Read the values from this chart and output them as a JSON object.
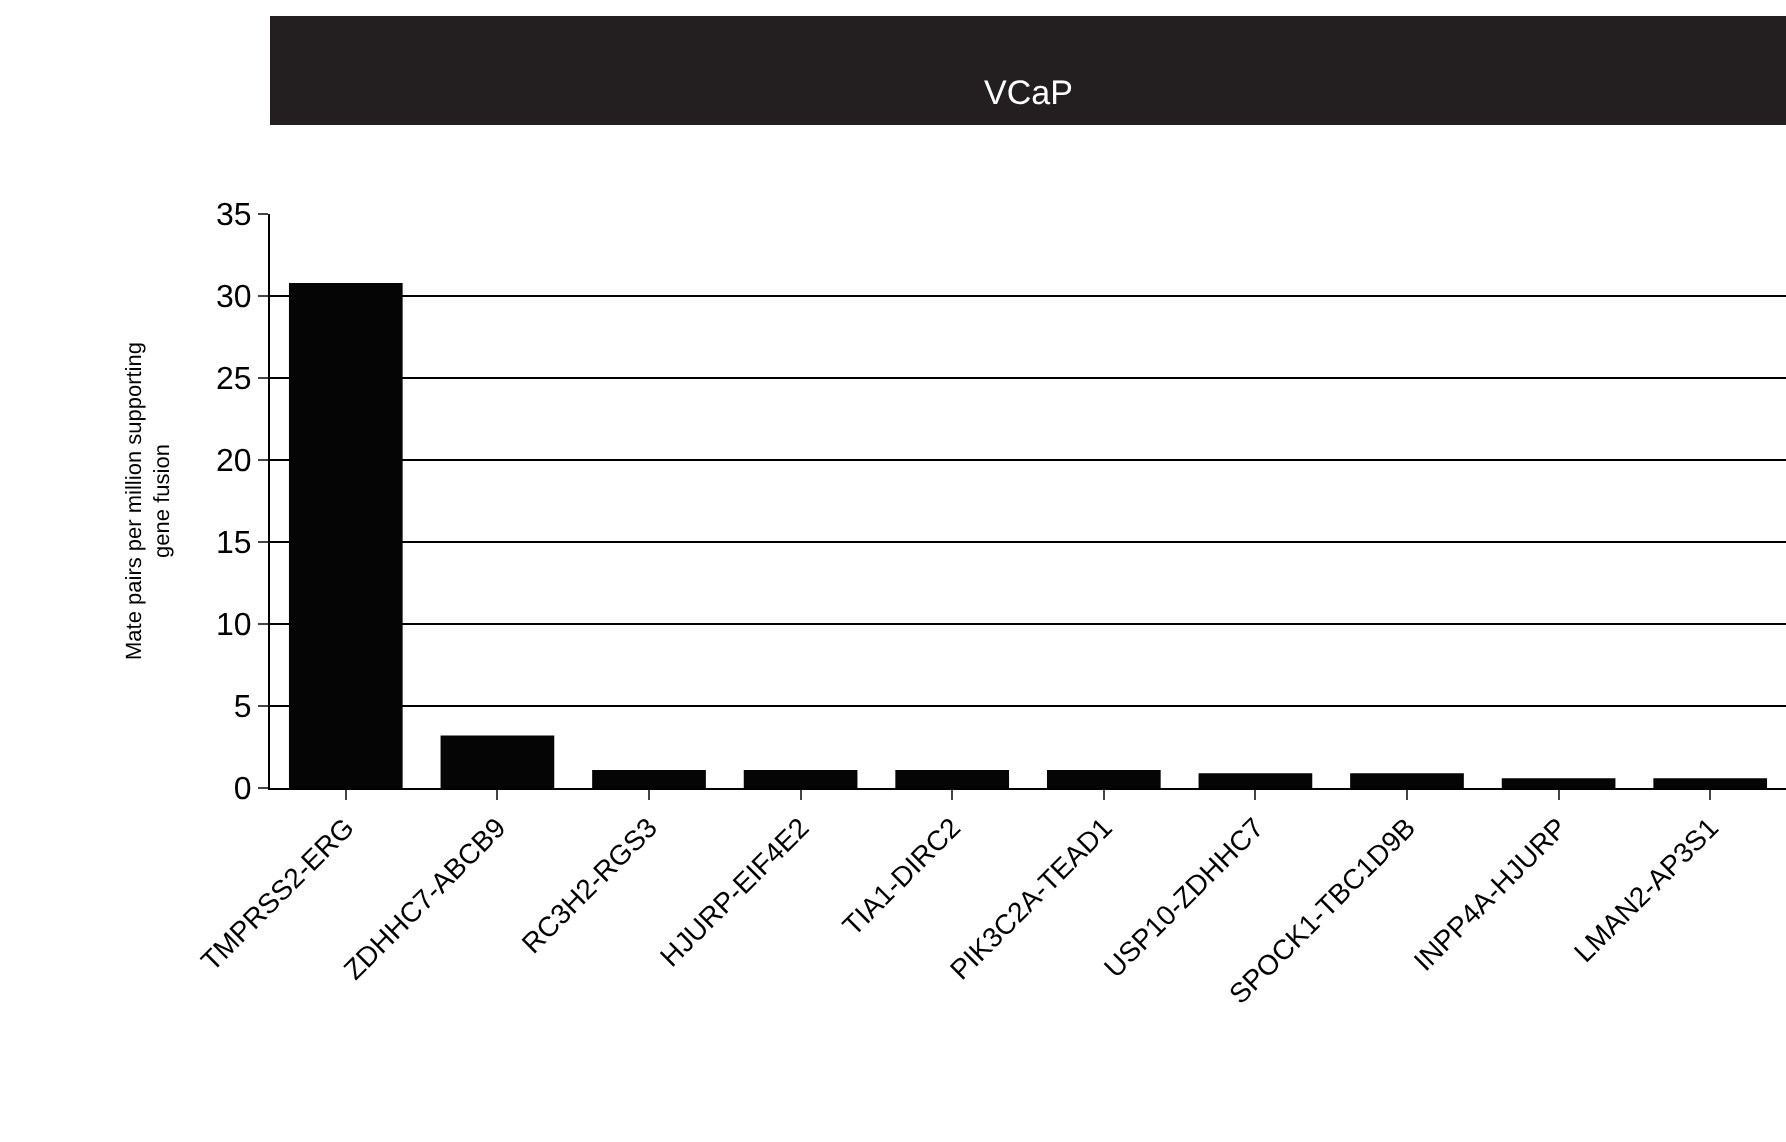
{
  "chart_data": {
    "type": "bar",
    "title": "VCaP",
    "ylabel": "Mate pairs per million supporting gene fusion",
    "categories": [
      "TMPRSS2-ERG",
      "ZDHHC7-ABCB9",
      "RC3H2-RGS3",
      "HJURP-EIF4E2",
      "TIA1-DIRC2",
      "PIK3C2A-TEAD1",
      "USP10-ZDHHC7",
      "SPOCK1-TBC1D9B",
      "INPP4A-HJURP",
      "LMAN2-AP3S1"
    ],
    "values": [
      30.8,
      3.2,
      1.1,
      1.1,
      1.1,
      1.1,
      0.9,
      0.9,
      0.6,
      0.6
    ],
    "color": "#050505",
    "ylim": [
      0,
      35
    ],
    "yticks": [
      0,
      5,
      10,
      15,
      20,
      25,
      30,
      35
    ],
    "grid": "y"
  }
}
